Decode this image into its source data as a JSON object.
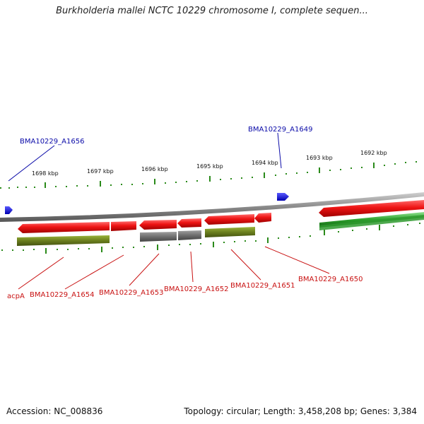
{
  "title": "Burkholderia mallei NCTC 10229 chromosome I, complete sequen...",
  "footer": {
    "accession": "Accession: NC_008836",
    "summary": "Topology: circular; Length: 3,458,208 bp; Genes: 3,384"
  },
  "scale_labels": [
    "1698 kbp",
    "1697 kbp",
    "1696 kbp",
    "1695 kbp",
    "1694 kbp",
    "1693 kbp",
    "1692 kbp"
  ],
  "gene_labels": {
    "top": [
      "BMA10229_A1656",
      "BMA10229_A1649"
    ],
    "bottom": [
      "acpA",
      "BMA10229_A1654",
      "BMA10229_A1653",
      "BMA10229_A1652",
      "BMA10229_A1651",
      "BMA10229_A1650"
    ]
  },
  "colors": {
    "forward_gene": "#e01010",
    "reverse_gene": "#6b7f1e",
    "pseudo_gene": "#6e6e6e",
    "rna_gene": "#1515d0",
    "top_label": "#0a0aa8",
    "bottom_label": "#c81010",
    "ticks": "#2a8a1a"
  }
}
